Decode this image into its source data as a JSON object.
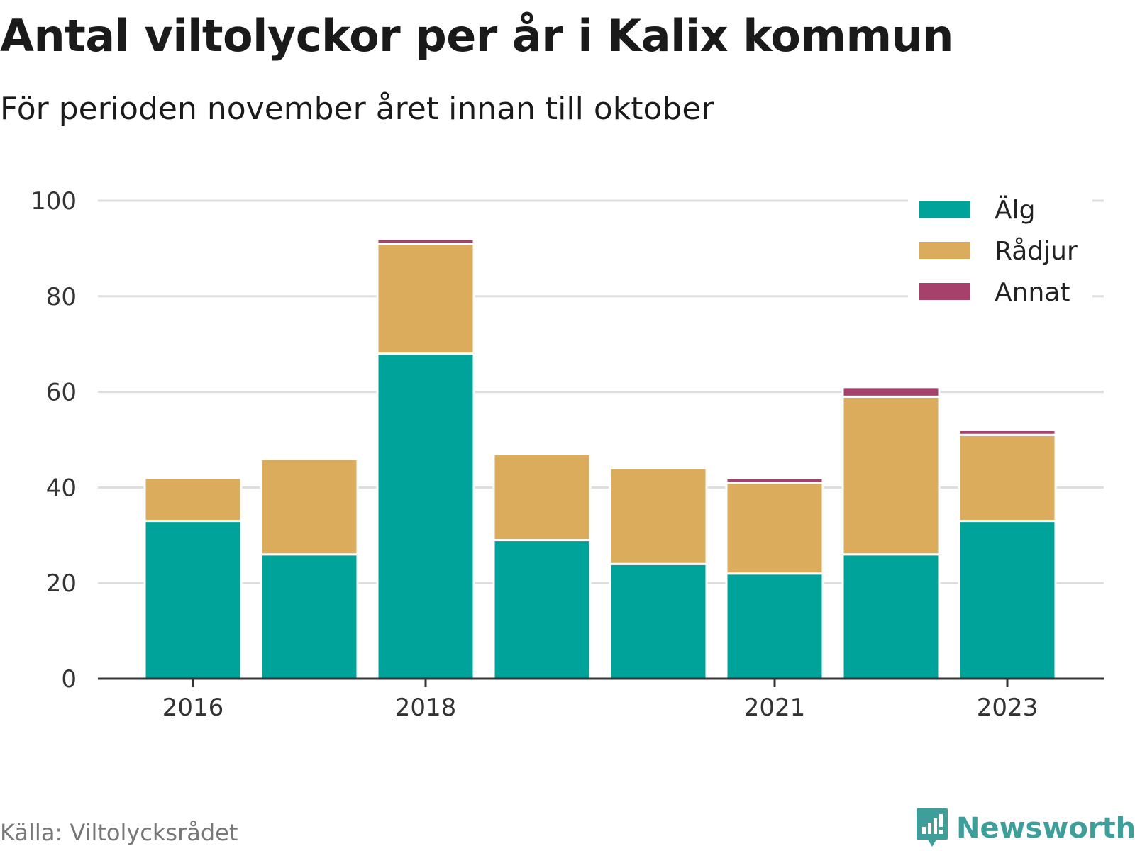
{
  "title": "Antal viltolyckor per år i Kalix kommun",
  "subtitle": "För perioden november året innan till oktober",
  "source": "Källa: Viltolycksrådet",
  "brand": {
    "name": "Newsworthy",
    "icon": "newsworthy-logo-icon"
  },
  "colors": {
    "alg": "#00a39a",
    "radjur": "#dbac5c",
    "annat": "#a5416a",
    "grid": "#dddddd",
    "axis": "#333333"
  },
  "chart_data": {
    "type": "bar",
    "stacked": true,
    "title": "Antal viltolyckor per år i Kalix kommun",
    "subtitle": "För perioden november året innan till oktober",
    "categories": [
      "2016",
      "2017",
      "2018",
      "2019",
      "2020",
      "2021",
      "2022",
      "2023"
    ],
    "tick_labels_shown": [
      "2016",
      "2018",
      "2021",
      "2023"
    ],
    "series": [
      {
        "name": "Älg",
        "values": [
          33,
          26,
          68,
          29,
          24,
          22,
          26,
          33
        ]
      },
      {
        "name": "Rådjur",
        "values": [
          9,
          20,
          23,
          18,
          20,
          19,
          33,
          18
        ]
      },
      {
        "name": "Annat",
        "values": [
          0,
          0,
          1,
          0,
          0,
          1,
          2,
          1
        ]
      }
    ],
    "ylim": [
      0,
      100
    ],
    "yticks": [
      0,
      20,
      40,
      60,
      80,
      100
    ],
    "grid": true,
    "legend_position": "top-right"
  }
}
